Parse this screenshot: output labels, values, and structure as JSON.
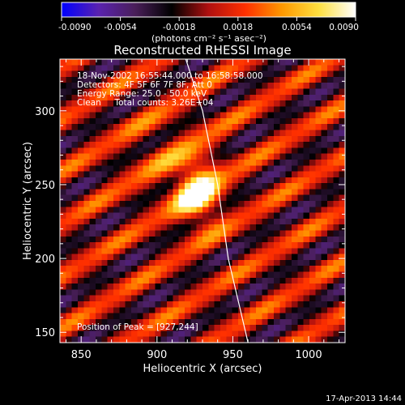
{
  "chart_data": {
    "type": "heatmap",
    "title": "Reconstructed RHESSI Image",
    "xlabel": "Heliocentric X (arcsec)",
    "ylabel": "Heliocentric Y (arcsec)",
    "xlim": [
      836,
      1024
    ],
    "ylim": [
      143,
      335
    ],
    "xticks": [
      850,
      900,
      950,
      1000
    ],
    "yticks": [
      150,
      200,
      250,
      300
    ],
    "xtick_labels": [
      "850",
      "900",
      "950",
      "1000"
    ],
    "ytick_labels": [
      "150",
      "200",
      "250",
      "300"
    ],
    "colorbar": {
      "ticks": [
        -0.009,
        -0.0054,
        -0.0018,
        0.0018,
        0.0054,
        0.009
      ],
      "tick_labels": [
        "-0.0090",
        "-0.0054",
        "-0.0018",
        "0.0018",
        "0.0054",
        "0.0090"
      ],
      "unit_label": "(photons cm⁻² s⁻¹ asec⁻²)",
      "range": [
        -0.009,
        0.009
      ],
      "colormap": "blue-purple-red-yellow-white"
    },
    "annotations": [
      "18-Nov-2002 16:55:44.000 to 16:58:58.000",
      "Detectors: 4F 5F 6F 7F 8F, Att 0",
      "Energy Range: 25.0 - 50.0 keV",
      "Clean     Total counts: 3.26E+04"
    ],
    "peak_label": "Position of Peak = [927,244]",
    "peak": {
      "x": 927,
      "y": 244,
      "value": 0.009
    },
    "limb_points": [
      [
        919,
        335
      ],
      [
        930,
        300
      ],
      [
        940,
        250
      ],
      [
        947,
        200
      ],
      [
        955,
        165
      ],
      [
        960,
        143
      ]
    ],
    "stripe_angle_deg": -32,
    "stripe_period_arcsec": 30,
    "grid": false
  },
  "footer_date": "17-Apr-2013 14:44",
  "colors": {
    "background": "#000000",
    "axes": "#ffffff",
    "limb": "#ffffff",
    "colormap_stops": [
      "#0000ff",
      "#5a22b0",
      "#4a1f5a",
      "#000000",
      "#b01010",
      "#ff3000",
      "#ff9900",
      "#ffe040",
      "#ffffff"
    ]
  }
}
